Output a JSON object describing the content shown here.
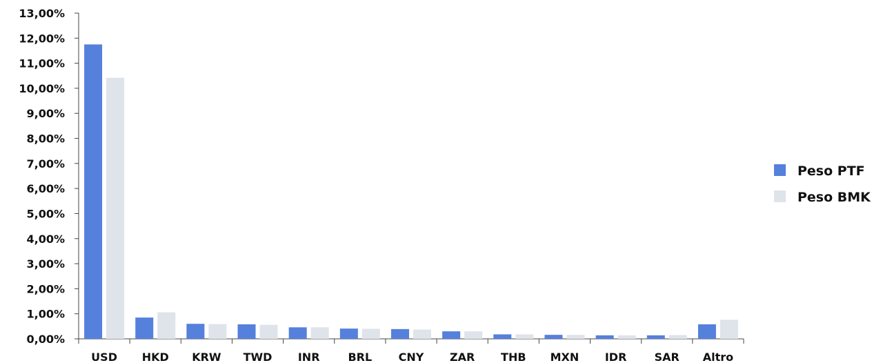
{
  "chart_data": {
    "type": "bar",
    "categories": [
      "USD",
      "HKD",
      "KRW",
      "TWD",
      "INR",
      "BRL",
      "CNY",
      "ZAR",
      "THB",
      "MXN",
      "IDR",
      "SAR",
      "Altro"
    ],
    "series": [
      {
        "name": "Peso PTF",
        "color": "#5580dc",
        "values": [
          11.75,
          0.85,
          0.6,
          0.58,
          0.46,
          0.41,
          0.39,
          0.3,
          0.18,
          0.16,
          0.14,
          0.14,
          0.58
        ]
      },
      {
        "name": "Peso BMK",
        "color": "#dfe3ea",
        "values": [
          10.42,
          1.06,
          0.59,
          0.56,
          0.46,
          0.4,
          0.37,
          0.3,
          0.18,
          0.16,
          0.14,
          0.15,
          0.76
        ]
      }
    ],
    "ylim": [
      0,
      13
    ],
    "yticks": [
      "0,00%",
      "1,00%",
      "2,00%",
      "3,00%",
      "4,00%",
      "5,00%",
      "6,00%",
      "7,00%",
      "8,00%",
      "9,00%",
      "10,00%",
      "11,00%",
      "12,00%",
      "13,00%"
    ],
    "title": "",
    "xlabel": "",
    "ylabel": "",
    "grid": false,
    "legend_position": "right"
  }
}
